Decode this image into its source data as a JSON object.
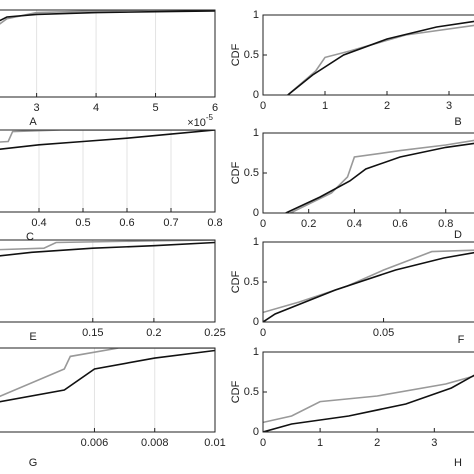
{
  "chart_data": [
    {
      "type": "line",
      "label": "A",
      "x_multiplier": {
        "base": "×10",
        "exponent": "-5"
      },
      "xlim": [
        2.3,
        6
      ],
      "ylim": [
        0,
        1
      ],
      "xticks": [
        3,
        4,
        5,
        6
      ],
      "grid": true,
      "series": [
        {
          "color": "#111111",
          "x": [
            2.3,
            2.5,
            3,
            4,
            5,
            6
          ],
          "values": [
            0.85,
            0.92,
            0.95,
            0.97,
            0.98,
            0.99
          ]
        },
        {
          "color": "#999999",
          "x": [
            2.3,
            2.5,
            3,
            4,
            5,
            6
          ],
          "values": [
            0.8,
            0.9,
            0.97,
            0.99,
            1,
            1
          ]
        }
      ]
    },
    {
      "type": "line",
      "label": "B",
      "ylabel": "CDF",
      "xlim": [
        0,
        3.5
      ],
      "ylim": [
        0,
        1
      ],
      "xticks": [
        0,
        1,
        2,
        3
      ],
      "yticks": [
        0,
        0.5,
        1
      ],
      "grid": false,
      "series": [
        {
          "color": "#111111",
          "x": [
            0.4,
            0.8,
            1.3,
            2,
            2.8,
            3.5
          ],
          "values": [
            0,
            0.25,
            0.5,
            0.7,
            0.85,
            0.93
          ]
        },
        {
          "color": "#999999",
          "x": [
            0.4,
            0.85,
            1.0,
            1.4,
            2.3,
            3.5
          ],
          "values": [
            0,
            0.3,
            0.47,
            0.55,
            0.75,
            0.88
          ]
        }
      ]
    },
    {
      "type": "line",
      "label": "C",
      "xlim": [
        0.3,
        0.8
      ],
      "ylim": [
        0,
        1
      ],
      "xticks": [
        0.4,
        0.5,
        0.6,
        0.7,
        0.8
      ],
      "grid": true,
      "series": [
        {
          "color": "#111111",
          "x": [
            0.3,
            0.4,
            0.5,
            0.6,
            0.7,
            0.8
          ],
          "values": [
            0.76,
            0.82,
            0.86,
            0.9,
            0.95,
            1
          ]
        },
        {
          "color": "#999999",
          "x": [
            0.3,
            0.33,
            0.34,
            0.45,
            0.8
          ],
          "values": [
            0.85,
            0.86,
            0.98,
            1,
            1
          ]
        }
      ]
    },
    {
      "type": "line",
      "label": "D",
      "ylabel": "CDF",
      "xlim": [
        0,
        0.95
      ],
      "ylim": [
        0,
        1
      ],
      "xticks": [
        0,
        0.2,
        0.4,
        0.6,
        0.8
      ],
      "yticks": [
        0,
        0.5,
        1
      ],
      "grid": false,
      "series": [
        {
          "color": "#111111",
          "x": [
            0.1,
            0.25,
            0.38,
            0.45,
            0.6,
            0.8,
            0.95
          ],
          "values": [
            0,
            0.2,
            0.4,
            0.55,
            0.7,
            0.82,
            0.88
          ]
        },
        {
          "color": "#999999",
          "x": [
            0.12,
            0.3,
            0.37,
            0.4,
            0.6,
            0.8,
            0.95
          ],
          "values": [
            0,
            0.25,
            0.45,
            0.7,
            0.78,
            0.85,
            0.92
          ]
        }
      ]
    },
    {
      "type": "line",
      "label": "E",
      "xlim": [
        0.07,
        0.25
      ],
      "ylim": [
        0,
        1
      ],
      "xticks": [
        0.15,
        0.2,
        0.25
      ],
      "grid": true,
      "series": [
        {
          "color": "#111111",
          "x": [
            0.07,
            0.1,
            0.15,
            0.2,
            0.25
          ],
          "values": [
            0.8,
            0.85,
            0.9,
            0.93,
            0.97
          ]
        },
        {
          "color": "#999999",
          "x": [
            0.07,
            0.11,
            0.12,
            0.2,
            0.25
          ],
          "values": [
            0.88,
            0.9,
            0.97,
            0.99,
            1
          ]
        }
      ]
    },
    {
      "type": "line",
      "label": "F",
      "ylabel": "CDF",
      "xlim": [
        0,
        0.09
      ],
      "ylim": [
        0,
        1
      ],
      "xticks": [
        0,
        0.05
      ],
      "yticks": [
        0,
        0.5,
        1
      ],
      "grid": false,
      "series": [
        {
          "color": "#111111",
          "x": [
            0,
            0.005,
            0.03,
            0.055,
            0.075,
            0.09
          ],
          "values": [
            0,
            0.1,
            0.4,
            0.65,
            0.8,
            0.88
          ]
        },
        {
          "color": "#999999",
          "x": [
            0,
            0.015,
            0.035,
            0.05,
            0.07,
            0.09
          ],
          "values": [
            0.12,
            0.25,
            0.45,
            0.65,
            0.88,
            0.9
          ]
        }
      ]
    },
    {
      "type": "line",
      "label": "G",
      "xlim": [
        0.0027,
        0.01
      ],
      "ylim": [
        0,
        1
      ],
      "xticks": [
        0.006,
        0.008,
        0.01
      ],
      "grid": true,
      "series": [
        {
          "color": "#111111",
          "x": [
            0.0027,
            0.005,
            0.006,
            0.008,
            0.01
          ],
          "values": [
            0.35,
            0.5,
            0.75,
            0.88,
            0.97
          ]
        },
        {
          "color": "#999999",
          "x": [
            0.0027,
            0.005,
            0.0052,
            0.0068,
            0.01
          ],
          "values": [
            0.4,
            0.75,
            0.9,
            1,
            1
          ]
        }
      ]
    },
    {
      "type": "line",
      "label": "H",
      "ylabel": "CDF",
      "xlim": [
        0,
        3.8
      ],
      "ylim": [
        0,
        1
      ],
      "xticks": [
        0,
        1,
        2,
        3
      ],
      "yticks": [
        0,
        0.5,
        1
      ],
      "grid": false,
      "series": [
        {
          "color": "#111111",
          "x": [
            0,
            0.5,
            1.5,
            2.5,
            3.3,
            3.8
          ],
          "values": [
            0,
            0.1,
            0.2,
            0.35,
            0.55,
            0.75
          ]
        },
        {
          "color": "#999999",
          "x": [
            0,
            0.5,
            1.0,
            2,
            3.2,
            3.8
          ],
          "values": [
            0.12,
            0.2,
            0.38,
            0.45,
            0.6,
            0.72
          ]
        }
      ]
    }
  ]
}
